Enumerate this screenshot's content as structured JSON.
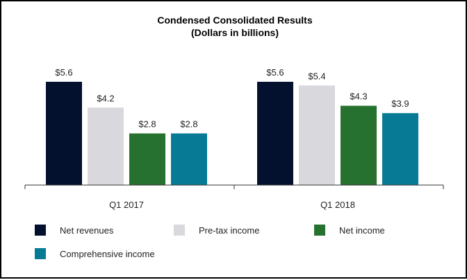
{
  "chart_data": {
    "type": "bar",
    "title": "Condensed Consolidated Results",
    "subtitle": "(Dollars in billions)",
    "categories": [
      "Q1 2017",
      "Q1 2018"
    ],
    "series": [
      {
        "name": "Net revenues",
        "color": "#03112e",
        "values": [
          5.6,
          5.6
        ],
        "labels": [
          "$5.6",
          "$5.6"
        ]
      },
      {
        "name": "Pre-tax income",
        "color": "#d9d8dd",
        "values": [
          4.2,
          5.4
        ],
        "labels": [
          "$4.2",
          "$5.4"
        ]
      },
      {
        "name": "Net income",
        "color": "#277130",
        "values": [
          2.8,
          4.3
        ],
        "labels": [
          "$2.8",
          "$4.3"
        ]
      },
      {
        "name": "Comprehensive income",
        "color": "#077b96",
        "values": [
          2.8,
          3.9
        ],
        "labels": [
          "$2.8",
          "$3.9"
        ]
      }
    ],
    "ylim": [
      0,
      5.6
    ],
    "grid": false,
    "legend_position": "bottom"
  }
}
